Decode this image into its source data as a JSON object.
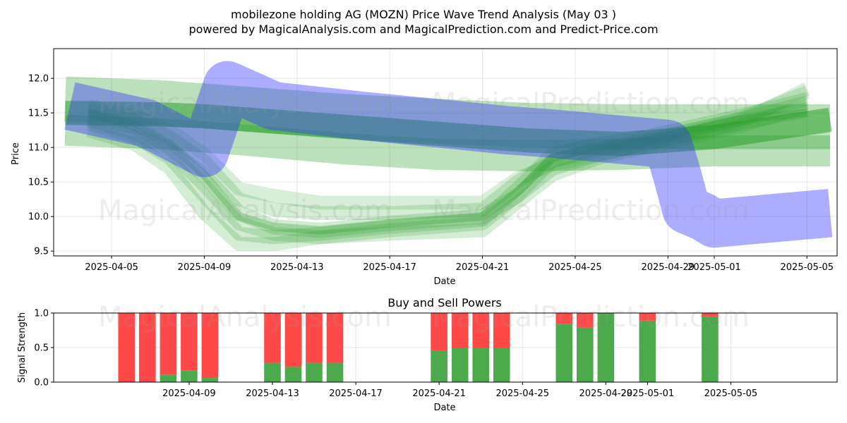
{
  "title_line1": "mobilezone holding AG (MOZN) Price Wave Trend Analysis (May 03 )",
  "title_line2": "powered by MagicalAnalysis.com and MagicalPrediction.com and Predict-Price.com",
  "watermarks": [
    "MagicalAnalysis.com",
    "MagicalPrediction.com"
  ],
  "colors": {
    "green": "#2ca02c",
    "blue": "#3333ff",
    "buy": "#4caa4c",
    "sell": "#ff4848",
    "grid": "#e6e6e6"
  },
  "chart_data": [
    {
      "type": "area",
      "name": "price-wave",
      "xlabel": "Date",
      "ylabel": "Price",
      "ylim": [
        9.43,
        12.43
      ],
      "x_range_days": [
        -2.5,
        31.3
      ],
      "x_origin": "2025-04-05",
      "xticks": [
        {
          "day": 0,
          "label": "2025-04-05"
        },
        {
          "day": 4,
          "label": "2025-04-09"
        },
        {
          "day": 8,
          "label": "2025-04-13"
        },
        {
          "day": 12,
          "label": "2025-04-17"
        },
        {
          "day": 16,
          "label": "2025-04-21"
        },
        {
          "day": 20,
          "label": "2025-04-25"
        },
        {
          "day": 24,
          "label": "2025-04-29"
        },
        {
          "day": 26,
          "label": "2025-05-01"
        },
        {
          "day": 30,
          "label": "2025-05-05"
        }
      ],
      "yticks": [
        9.5,
        10.0,
        10.5,
        11.0,
        11.5,
        12.0
      ],
      "bands_green": [
        {
          "x": [
            -2,
            2,
            4,
            6,
            10,
            14,
            18,
            22,
            26,
            31
          ],
          "y": [
            11.7,
            11.65,
            11.6,
            11.55,
            11.45,
            11.38,
            11.32,
            11.3,
            11.3,
            11.3
          ],
          "w": 0.65,
          "o": 0.32
        },
        {
          "x": [
            -2,
            2,
            4,
            6,
            10,
            14,
            18,
            22,
            26,
            31
          ],
          "y": [
            11.25,
            11.2,
            11.15,
            11.1,
            10.98,
            10.9,
            10.88,
            10.9,
            10.95,
            10.95
          ],
          "w": 0.45,
          "o": 0.32
        },
        {
          "x": [
            -2,
            2,
            4,
            6,
            10,
            14,
            18,
            22,
            26,
            31
          ],
          "y": [
            11.5,
            11.48,
            11.45,
            11.4,
            11.3,
            11.2,
            11.1,
            11.05,
            11.15,
            11.4
          ],
          "w": 0.35,
          "o": 0.55
        },
        {
          "x": [
            -1,
            1,
            2.5,
            4,
            5.5,
            7,
            9,
            12,
            16,
            17.5,
            19,
            21,
            23,
            25,
            27,
            30
          ],
          "y": [
            11.45,
            11.3,
            11.0,
            10.6,
            10.05,
            9.85,
            9.8,
            9.9,
            10.0,
            10.3,
            10.7,
            10.9,
            11.05,
            11.2,
            11.35,
            11.55
          ],
          "w": 0.22,
          "o": 0.22
        },
        {
          "x": [
            -1,
            1,
            2.5,
            4,
            5.5,
            7,
            9,
            12,
            16,
            17.5,
            19,
            21,
            23,
            25,
            27,
            30
          ],
          "y": [
            11.35,
            11.15,
            10.85,
            10.3,
            9.75,
            9.7,
            9.75,
            9.85,
            9.95,
            10.4,
            10.9,
            11.05,
            11.15,
            11.3,
            11.45,
            11.7
          ],
          "w": 0.2,
          "o": 0.22
        },
        {
          "x": [
            -1,
            1,
            2.5,
            4,
            5.5,
            7,
            9,
            12,
            16,
            17.5,
            19,
            21,
            23,
            25,
            27,
            30
          ],
          "y": [
            11.55,
            11.4,
            11.15,
            10.8,
            10.25,
            10.1,
            10.05,
            10.05,
            10.1,
            10.5,
            10.8,
            10.95,
            11.1,
            11.25,
            11.4,
            11.8
          ],
          "w": 0.2,
          "o": 0.2
        },
        {
          "x": [
            -1,
            1,
            2.5,
            4,
            5.5,
            7,
            9,
            12,
            16,
            17.5,
            19,
            21,
            23,
            25,
            27,
            30
          ],
          "y": [
            11.25,
            11.05,
            10.7,
            10.05,
            9.6,
            9.6,
            9.7,
            9.75,
            9.8,
            10.2,
            10.6,
            10.85,
            11.0,
            11.15,
            11.3,
            11.6
          ],
          "w": 0.2,
          "o": 0.2
        },
        {
          "x": [
            -1,
            1,
            2.5,
            4,
            5.5,
            7,
            9,
            12,
            16,
            17.5,
            19,
            21,
            23,
            25,
            27,
            30
          ],
          "y": [
            11.6,
            11.45,
            11.25,
            10.9,
            10.4,
            10.3,
            10.2,
            10.2,
            10.2,
            10.55,
            10.75,
            10.9,
            11.05,
            11.2,
            11.35,
            11.85
          ],
          "w": 0.2,
          "o": 0.18
        },
        {
          "x": [
            -1,
            1,
            2.5,
            4,
            5.5,
            7,
            9,
            12,
            16,
            17.5,
            19,
            21,
            23,
            25,
            27,
            30
          ],
          "y": [
            11.4,
            11.2,
            10.95,
            10.45,
            9.9,
            9.75,
            9.7,
            9.8,
            9.9,
            10.3,
            10.8,
            11.0,
            11.1,
            11.25,
            11.4,
            11.65
          ],
          "w": 0.2,
          "o": 0.2
        },
        {
          "x": [
            -1,
            1,
            2.5,
            4,
            5.5,
            7,
            9,
            12,
            16,
            17.5,
            19,
            21,
            23,
            25,
            27,
            30
          ],
          "y": [
            11.5,
            11.3,
            11.05,
            10.6,
            10.0,
            9.85,
            9.8,
            9.9,
            10.0,
            10.35,
            10.85,
            11.0,
            11.1,
            11.25,
            11.4,
            11.5
          ],
          "w": 0.12,
          "o": 0.3
        }
      ],
      "bands_blue": [
        {
          "x": [
            -1.8,
            1.5,
            4.0,
            5.0,
            7.0,
            11.0,
            15.0,
            17.0,
            19.0,
            24.0,
            24.4,
            24.8,
            25.5,
            26.0,
            31.0
          ],
          "y": [
            11.6,
            11.35,
            10.92,
            11.9,
            11.6,
            11.45,
            11.32,
            11.25,
            11.2,
            11.05,
            10.6,
            10.1,
            10.0,
            9.9,
            10.05
          ],
          "w": 0.7,
          "o": 0.4
        }
      ]
    },
    {
      "type": "bar",
      "name": "buy-sell-powers",
      "title": "Buy and Sell Powers",
      "xlabel": "Date",
      "ylabel": "Signal Strength",
      "ylim": [
        0,
        1.0
      ],
      "x_range_days": [
        -6.5,
        31.1
      ],
      "x_origin": "2025-04-09",
      "xticks": [
        {
          "day": 0,
          "label": "2025-04-09"
        },
        {
          "day": 4,
          "label": "2025-04-13"
        },
        {
          "day": 8,
          "label": "2025-04-17"
        },
        {
          "day": 12,
          "label": "2025-04-21"
        },
        {
          "day": 16,
          "label": "2025-04-25"
        },
        {
          "day": 20,
          "label": "2025-04-29"
        },
        {
          "day": 22,
          "label": "2025-05-01"
        },
        {
          "day": 26,
          "label": "2025-05-05"
        }
      ],
      "yticks": [
        0.0,
        0.5,
        1.0
      ],
      "days": [
        -3,
        -2,
        -1,
        0,
        1,
        4,
        5,
        6,
        7,
        12,
        13,
        14,
        15,
        18,
        19,
        20,
        22,
        25
      ],
      "buy": [
        0.0,
        0.0,
        0.11,
        0.17,
        0.06,
        0.28,
        0.22,
        0.28,
        0.28,
        0.45,
        0.49,
        0.49,
        0.49,
        0.84,
        0.79,
        1.0,
        0.89,
        0.95
      ],
      "sell": [
        1.0,
        1.0,
        0.89,
        0.83,
        0.94,
        0.72,
        0.78,
        0.72,
        0.72,
        0.55,
        0.51,
        0.51,
        0.51,
        0.16,
        0.21,
        0.0,
        0.11,
        0.05
      ]
    }
  ]
}
